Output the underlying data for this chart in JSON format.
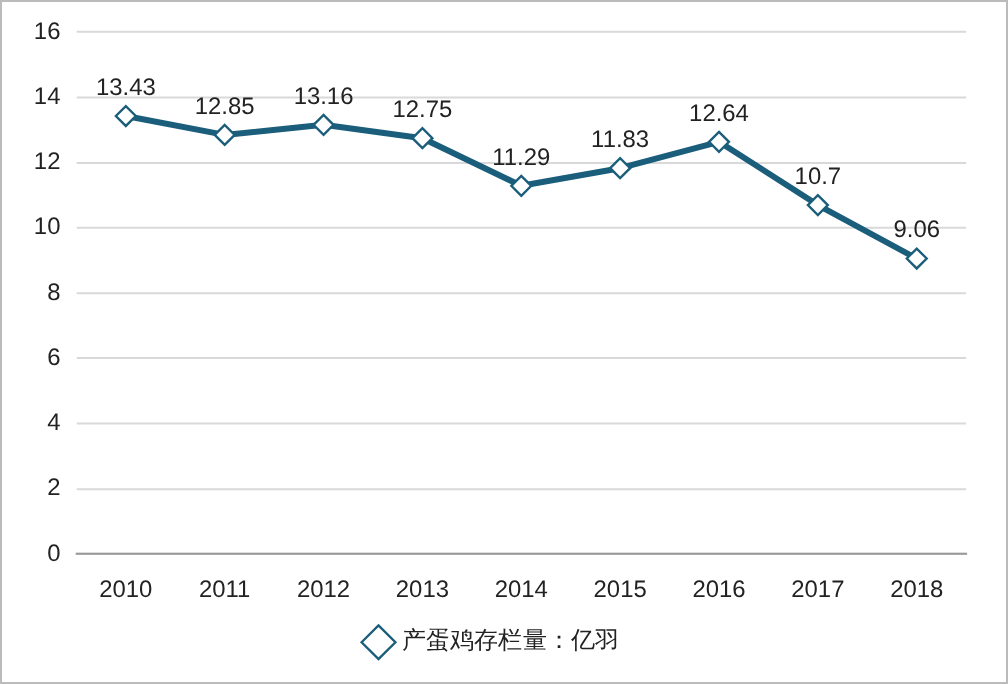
{
  "chart_data": {
    "type": "line",
    "categories": [
      "2010",
      "2011",
      "2012",
      "2013",
      "2014",
      "2015",
      "2016",
      "2017",
      "2018"
    ],
    "series": [
      {
        "name": "产蛋鸡存栏量：亿羽",
        "color": "#1b5e7b",
        "values": [
          13.43,
          12.85,
          13.16,
          12.75,
          11.29,
          11.83,
          12.64,
          10.7,
          9.06
        ]
      }
    ],
    "ylim": [
      0,
      16
    ],
    "yticks": [
      0,
      2,
      4,
      6,
      8,
      10,
      12,
      14,
      16
    ],
    "grid": "y",
    "legend": "bottom",
    "marker": "diamond",
    "line_style": "solid",
    "data_labels": true
  }
}
